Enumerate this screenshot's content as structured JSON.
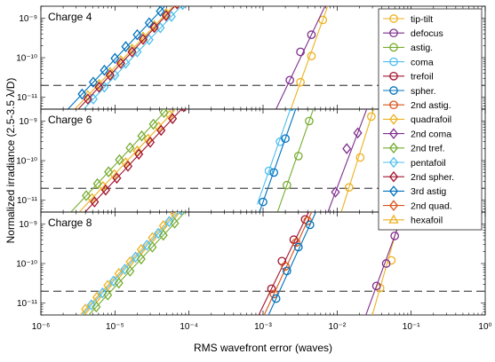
{
  "chart_data": {
    "type": "line",
    "xlabel": "RMS wavefront error (waves)",
    "ylabel": "Normalized irradiance (2.5-3.5 λ/D)",
    "xscale": "log",
    "yscale": "log",
    "xlim": [
      1e-06,
      1
    ],
    "ylim": [
      5e-12,
      2e-09
    ],
    "x_tick_labels": [
      "10⁻⁶",
      "10⁻⁵",
      "10⁻⁴",
      "10⁻³",
      "10⁻²",
      "10⁻¹",
      "10⁰"
    ],
    "y_tick_labels": [
      "10⁻⁹",
      "10⁻¹⁰",
      "10⁻¹¹"
    ],
    "threshold": 2e-11,
    "legend_position": "top-right",
    "series": [
      {
        "name": "tip-tilt",
        "color": "#EDB120",
        "marker": "circle"
      },
      {
        "name": "defocus",
        "color": "#7E2F8E",
        "marker": "circle"
      },
      {
        "name": "astig.",
        "color": "#77AC30",
        "marker": "circle"
      },
      {
        "name": "coma",
        "color": "#4DBEEE",
        "marker": "circle"
      },
      {
        "name": "trefoil",
        "color": "#A2142F",
        "marker": "circle"
      },
      {
        "name": "spher.",
        "color": "#0072BD",
        "marker": "circle"
      },
      {
        "name": "2nd astig.",
        "color": "#D95319",
        "marker": "circle"
      },
      {
        "name": "quadrafoil",
        "color": "#EDB120",
        "marker": "diamond"
      },
      {
        "name": "2nd coma",
        "color": "#7E2F8E",
        "marker": "diamond"
      },
      {
        "name": "2nd tref.",
        "color": "#77AC30",
        "marker": "diamond"
      },
      {
        "name": "pentafoil",
        "color": "#4DBEEE",
        "marker": "diamond"
      },
      {
        "name": "2nd spher.",
        "color": "#A2142F",
        "marker": "diamond"
      },
      {
        "name": "3rd astig",
        "color": "#0072BD",
        "marker": "diamond"
      },
      {
        "name": "2nd quad.",
        "color": "#D95319",
        "marker": "diamond"
      },
      {
        "name": "hexafoil",
        "color": "#EDB120",
        "marker": "triangle"
      }
    ],
    "panels": [
      {
        "title": "Charge 4",
        "lines": [
          {
            "series": "tip-tilt",
            "x": [
              0.0032,
              0.0045,
              0.0064
            ],
            "y": [
              2.4e-11,
              1.1e-10,
              9e-10
            ]
          },
          {
            "series": "defocus",
            "x": [
              0.0023,
              0.0032,
              0.0045
            ],
            "y": [
              2.7e-11,
              1.4e-10,
              3.8e-10
            ]
          },
          {
            "series": "quadrafoil",
            "x": [
              4.3e-06,
              6.1e-06,
              8.6e-06,
              1.2e-05,
              1.7e-05,
              2.4e-05,
              3.4e-05,
              4.9e-05,
              6.9e-05
            ],
            "y": [
              1.1e-11,
              2.1e-11,
              4.2e-11,
              8.4e-11,
              1.65e-10,
              3.3e-10,
              6.5e-10,
              1.3e-09,
              2.5e-09
            ]
          },
          {
            "series": "pentafoil",
            "x": [
              5.1e-06,
              7.2e-06,
              1e-05,
              1.4e-05,
              2e-05,
              2.9e-05,
              4.1e-05,
              5.8e-05,
              8.2e-05
            ],
            "y": [
              9e-12,
              1.8e-11,
              3.6e-11,
              7.2e-11,
              1.4e-10,
              2.85e-10,
              5.7e-10,
              1.1e-09,
              2.2e-09
            ]
          },
          {
            "series": "3rd astig",
            "x": [
              3.6e-06,
              5.1e-06,
              7.2e-06,
              1e-05,
              1.4e-05,
              2e-05,
              2.9e-05,
              4.1e-05,
              5.8e-05
            ],
            "y": [
              1.2e-11,
              2.4e-11,
              4.8e-11,
              9.6e-11,
              1.9e-10,
              3.8e-10,
              7.6e-10,
              1.5e-09,
              3e-09
            ]
          },
          {
            "series": "2nd spher.",
            "x": [
              4.3e-06,
              6.1e-06,
              8.6e-06,
              1.2e-05,
              1.7e-05,
              2.4e-05,
              3.4e-05,
              4.9e-05,
              6.9e-05
            ],
            "y": [
              9e-12,
              1.8e-11,
              3.6e-11,
              7.2e-11,
              1.4e-10,
              2.9e-10,
              5.8e-10,
              1.15e-09,
              2.3e-09
            ]
          }
        ]
      },
      {
        "title": "Charge 6",
        "lines": [
          {
            "series": "coma",
            "x": [
              0.0012,
              0.0017,
              0.0024
            ],
            "y": [
              5.5e-11,
              3e-10,
              2.3e-09
            ]
          },
          {
            "series": "astig.",
            "x": [
              0.0021,
              0.003,
              0.0042
            ],
            "y": [
              2.4e-11,
              1.3e-10,
              1e-09
            ]
          },
          {
            "series": "spher.",
            "x": [
              0.001,
              0.0014,
              0.002
            ],
            "y": [
              9e-12,
              5e-11,
              3.6e-10
            ]
          },
          {
            "series": "2nd coma",
            "x": [
              0.0095,
              0.0135,
              0.019
            ],
            "y": [
              1.6e-11,
              2e-10,
              5e-10
            ]
          },
          {
            "series": "tip-tilt",
            "x": [
              0.0145,
              0.0205,
              0.029
            ],
            "y": [
              2.1e-11,
              1.2e-10,
              1.3e-09
            ]
          },
          {
            "series": "quadrafoil",
            "x": [
              4.9e-06,
              6.9e-06,
              9.8e-06,
              1.4e-05,
              2e-05,
              2.8e-05,
              3.9e-05,
              5.5e-05,
              7.8e-05
            ],
            "y": [
              1.1e-11,
              2.2e-11,
              4.4e-11,
              8.8e-11,
              1.75e-10,
              3.5e-10,
              7e-10,
              1.4e-09,
              2.8e-09
            ]
          },
          {
            "series": "2nd tref.",
            "x": [
              4.1e-06,
              5.8e-06,
              8.2e-06,
              1.15e-05,
              1.6e-05,
              2.3e-05,
              3.3e-05,
              4.6e-05,
              6.5e-05
            ],
            "y": [
              1.3e-11,
              2.6e-11,
              5.2e-11,
              1.05e-10,
              2.1e-10,
              4.2e-10,
              8.3e-10,
              1.65e-09,
              3.3e-09
            ]
          },
          {
            "series": "2nd spher.",
            "x": [
              5.3e-06,
              7.5e-06,
              1.06e-05,
              1.5e-05,
              2.1e-05,
              3e-05,
              4.2e-05,
              6e-05,
              8.5e-05
            ],
            "y": [
              9e-12,
              1.8e-11,
              3.6e-11,
              7.2e-11,
              1.45e-10,
              2.9e-10,
              5.8e-10,
              1.15e-09,
              2.3e-09
            ]
          }
        ]
      },
      {
        "title": "Charge 8",
        "lines": [
          {
            "series": "tip-tilt",
            "x": [
              0.038,
              0.054,
              0.066
            ],
            "y": [
              2.4e-11,
              1.2e-10,
              9e-10
            ]
          },
          {
            "series": "defocus",
            "x": [
              0.034,
              0.046,
              0.06
            ],
            "y": [
              2.7e-11,
              1e-10,
              5e-10
            ]
          },
          {
            "series": "trefoil",
            "x": [
              0.0013,
              0.0018,
              0.0026,
              0.0037
            ],
            "y": [
              2.3e-11,
              1.15e-10,
              4e-10,
              1.3e-09
            ]
          },
          {
            "series": "2nd astig.",
            "x": [
              0.0014,
              0.002,
              0.0028,
              0.004
            ],
            "y": [
              1.7e-11,
              8.5e-11,
              3.4e-10,
              1.2e-09
            ]
          },
          {
            "series": "spher.",
            "x": [
              0.0015,
              0.0021,
              0.003,
              0.0043
            ],
            "y": [
              1.3e-11,
              6.5e-11,
              2.6e-10,
              9.5e-10
            ]
          },
          {
            "series": "quadrafoil",
            "x": [
              4e-06,
              5.7e-06,
              8e-06,
              1.13e-05,
              1.6e-05,
              2.26e-05,
              3.2e-05,
              4.5e-05,
              6.4e-05,
              9e-05
            ],
            "y": [
              7e-12,
              1.4e-11,
              2.8e-11,
              5.6e-11,
              1.1e-10,
              2.25e-10,
              4.5e-10,
              9e-10,
              1.8e-09,
              3.6e-09
            ]
          },
          {
            "series": "pentafoil",
            "x": [
              4.8e-06,
              6.8e-06,
              9.6e-06,
              1.36e-05,
              1.9e-05,
              2.7e-05,
              3.85e-05,
              5.4e-05,
              7.7e-05
            ],
            "y": [
              9e-12,
              1.8e-11,
              3.6e-11,
              7.2e-11,
              1.45e-10,
              2.9e-10,
              5.8e-10,
              1.15e-09,
              2.3e-09
            ]
          },
          {
            "series": "2nd tref.",
            "x": [
              5.6e-06,
              8e-06,
              1.13e-05,
              1.6e-05,
              2.26e-05,
              3.2e-05,
              4.5e-05,
              6.4e-05
            ],
            "y": [
              8e-12,
              1.6e-11,
              3.2e-11,
              6.4e-11,
              1.3e-10,
              2.6e-10,
              5.2e-10,
              1.05e-09
            ]
          }
        ]
      }
    ]
  }
}
